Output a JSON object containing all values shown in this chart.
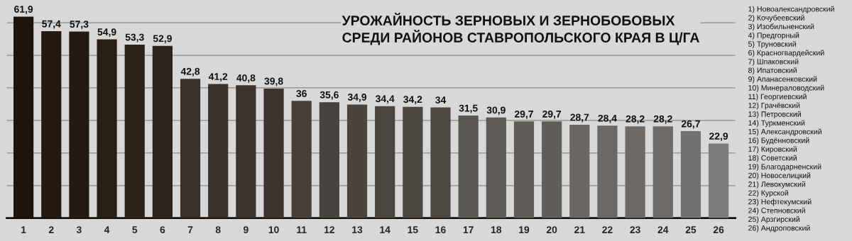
{
  "chart_data": {
    "type": "bar",
    "title": "УРОЖАЙНОСТЬ ЗЕРНОВЫХ И ЗЕРНОБОБОВЫХ\nСРЕДИ РАЙОНОВ СТАВРОПОЛЬСКОГО КРАЯ В Ц/ГА",
    "categories": [
      "1",
      "2",
      "3",
      "4",
      "5",
      "6",
      "7",
      "8",
      "9",
      "10",
      "11",
      "12",
      "13",
      "14",
      "15",
      "16",
      "17",
      "18",
      "19",
      "20",
      "21",
      "22",
      "23",
      "24",
      "25",
      "26"
    ],
    "values": [
      61.9,
      57.4,
      57.3,
      54.9,
      53.3,
      52.9,
      42.8,
      41.2,
      40.8,
      39.8,
      36,
      35.6,
      34.9,
      34.4,
      34.2,
      34,
      31.5,
      30.9,
      29.7,
      29.7,
      28.7,
      28.4,
      28.2,
      28.2,
      26.7,
      22.9
    ],
    "value_labels": [
      "61,9",
      "57,4",
      "57,3",
      "54,9",
      "53,3",
      "52,9",
      "42,8",
      "41,2",
      "40,8",
      "39,8",
      "36",
      "35,6",
      "34,9",
      "34,4",
      "34,2",
      "34",
      "31,5",
      "30,9",
      "29,7",
      "29,7",
      "28,7",
      "28,4",
      "28,2",
      "28,2",
      "26,7",
      "22,9"
    ],
    "colors": [
      "#1f140b",
      "#25190f",
      "#261a10",
      "#2a1f15",
      "#2c2218",
      "#2d231a",
      "#383029",
      "#39312a",
      "#3a322b",
      "#3b332c",
      "#47403a",
      "#48423c",
      "#4a433e",
      "#4b4540",
      "#4c4641",
      "#4d4742",
      "#5b5753",
      "#5d5955",
      "#605c58",
      "#615d59",
      "#6a6764",
      "#6b6865",
      "#6c6966",
      "#6d6a67",
      "#747270",
      "#7c7c7c"
    ],
    "ylim": [
      0,
      67
    ],
    "yticks": [
      {
        "value": 10,
        "label": null
      },
      {
        "value": 20,
        "label": null
      },
      {
        "value": 30,
        "label": null
      },
      {
        "value": 40,
        "label": null
      },
      {
        "value": 50,
        "label": null
      },
      {
        "value": 60,
        "label": null
      }
    ],
    "grid": "y",
    "annotations": [
      "1) Новоалександровский",
      "2) Кочубеевский",
      "3) Изобильненский",
      "4) Предгорный",
      "5) Труновский",
      "6) Красногвардейский",
      "7) Шпаковский",
      "8) Ипатовский",
      "9) Апанасенковский",
      "10) Минераловодский",
      "11) Георгиевский",
      "12) Грачёвский",
      "13) Петровский",
      "14) Туркменский",
      "15) Александровский",
      "16) Будённовский",
      "17) Кировский",
      "18) Советский",
      "19) Благодарненский",
      "20) Новоселицкий",
      "21) Левокумский",
      "22) Курской",
      "23) Нефтекумский",
      "24) Степновский",
      "25) Арзгирский",
      "26) Андроповский"
    ]
  }
}
